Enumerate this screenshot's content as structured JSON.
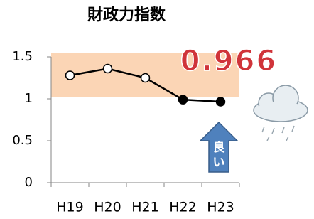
{
  "chart_data": {
    "type": "line",
    "title": "財政力指数",
    "categories": [
      "H19",
      "H20",
      "H21",
      "H22",
      "H23"
    ],
    "series": [
      {
        "color": "#000000",
        "values": [
          1.28,
          1.36,
          1.25,
          0.99,
          0.966
        ],
        "point_colors": [
          "#ffffff",
          "#ffffff",
          "#ffffff",
          "#000000",
          "#000000"
        ]
      }
    ],
    "ylim": [
      0,
      1.5
    ],
    "yticks": [
      0,
      0.5,
      1,
      1.5
    ],
    "highlight_range": [
      1.02,
      1.55
    ],
    "highlight_color": "#fbd5b5",
    "annotations": {
      "value_text": "0.966",
      "arrow_text": [
        "良",
        "い"
      ]
    }
  }
}
